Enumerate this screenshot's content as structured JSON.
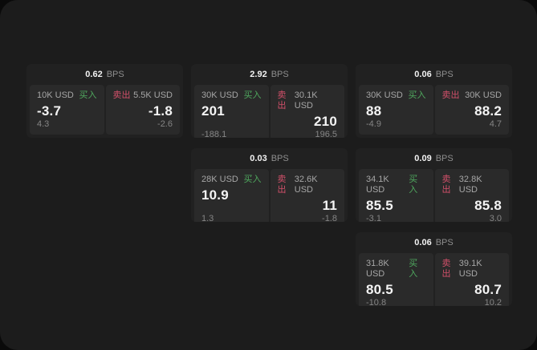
{
  "colors": {
    "background": "#0a0a0a",
    "panel": "#1c1c1c",
    "card": "#212121",
    "tile": "#2a2a2a",
    "buy_green": "#4fa85e",
    "sell_red": "#d2506a",
    "text_primary": "#f4f4f4",
    "text_muted": "#8e8e8e"
  },
  "labels": {
    "buy": "买入",
    "sell": "卖出",
    "bps_unit": "BPS"
  },
  "cards": [
    {
      "bps": "0.62",
      "unit": "BPS",
      "buy": {
        "amount": "10K USD",
        "side": "买入",
        "value": "-3.7",
        "sub": "4.3"
      },
      "sell": {
        "side": "卖出",
        "amount": "5.5K USD",
        "value": "-1.8",
        "sub": "-2.6"
      }
    },
    {
      "bps": "2.92",
      "unit": "BPS",
      "buy": {
        "amount": "30K USD",
        "side": "买入",
        "value": "201",
        "sub": "-188.1"
      },
      "sell": {
        "side": "卖出",
        "amount": "30.1K USD",
        "value": "210",
        "sub": "196.5"
      }
    },
    {
      "bps": "0.06",
      "unit": "BPS",
      "buy": {
        "amount": "30K USD",
        "side": "买入",
        "value": "88",
        "sub": "-4.9"
      },
      "sell": {
        "side": "卖出",
        "amount": "30K USD",
        "value": "88.2",
        "sub": "4.7"
      }
    },
    {
      "bps": "0.03",
      "unit": "BPS",
      "buy": {
        "amount": "28K USD",
        "side": "买入",
        "value": "10.9",
        "sub": "1.3"
      },
      "sell": {
        "side": "卖出",
        "amount": "32.6K USD",
        "value": "11",
        "sub": "-1.8"
      }
    },
    {
      "bps": "0.09",
      "unit": "BPS",
      "buy": {
        "amount": "34.1K USD",
        "side": "买入",
        "value": "85.5",
        "sub": "-3.1"
      },
      "sell": {
        "side": "卖出",
        "amount": "32.8K USD",
        "value": "85.8",
        "sub": "3.0"
      }
    },
    {
      "bps": "0.06",
      "unit": "BPS",
      "buy": {
        "amount": "31.8K USD",
        "side": "买入",
        "value": "80.5",
        "sub": "-10.8"
      },
      "sell": {
        "side": "卖出",
        "amount": "39.1K USD",
        "value": "80.7",
        "sub": "10.2"
      }
    }
  ]
}
